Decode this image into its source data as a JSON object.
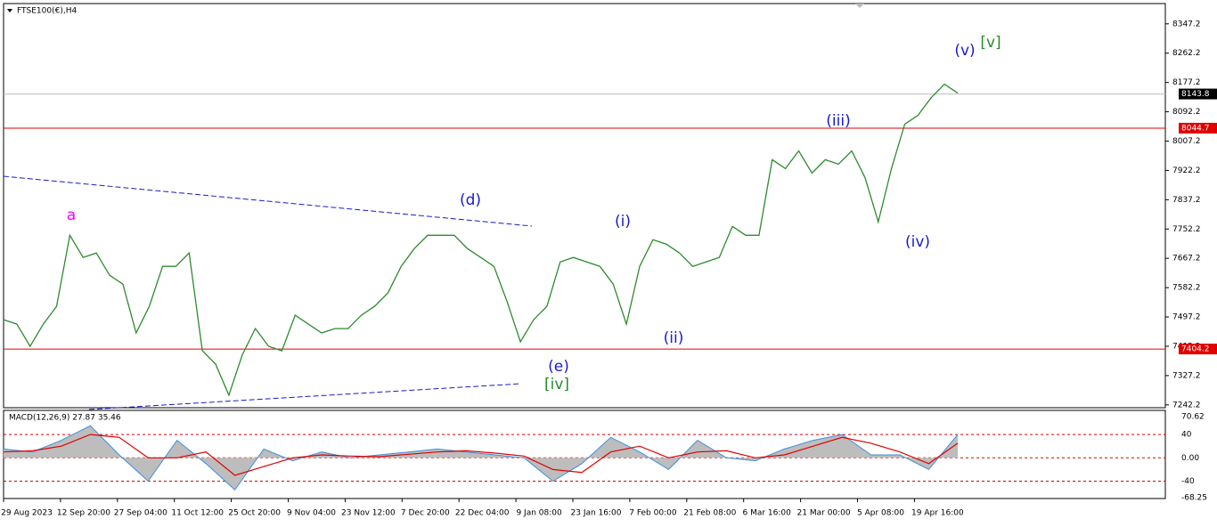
{
  "chart_data": [
    {
      "type": "line",
      "title": "FTSE100(€),H4",
      "color": "#2e8b2e",
      "values": [
        7489.4,
        7476.5,
        7412.1,
        7476.5,
        7528.0,
        7734.1,
        7669.7,
        7682.6,
        7618.2,
        7592.4,
        7450.8,
        7528.0,
        7644.0,
        7644.0,
        7682.6,
        7399.2,
        7360.6,
        7270.4,
        7386.4,
        7463.6,
        7412.1,
        7399.2,
        7502.3,
        7476.5,
        7450.8,
        7463.6,
        7463.6,
        7502.3,
        7528.0,
        7566.7,
        7644.0,
        7695.5,
        7734.1,
        7734.1,
        7734.1,
        7695.5,
        7669.7,
        7644.0,
        7540.9,
        7425.0,
        7489.4,
        7528.0,
        7656.8,
        7669.7,
        7656.8,
        7644.0,
        7592.4,
        7476.5,
        7644.0,
        7721.2,
        7708.4,
        7682.6,
        7644.0,
        7656.8,
        7669.7,
        7759.9,
        7734.1,
        7734.1,
        7953.1,
        7927.3,
        7978.8,
        7914.4,
        7953.1,
        7940.2,
        7978.8,
        7901.6,
        7772.8,
        7927.3,
        8056.1,
        8081.9,
        8133.4,
        8172.0,
        8146.3
      ],
      "ylim": [
        7234,
        8406
      ],
      "yticks": [
        8347.2,
        8262.2,
        8177.2,
        8092.2,
        8007.2,
        7922.2,
        7837.2,
        7752.2,
        7667.2,
        7582.2,
        7497.2,
        7412.2,
        7327.2,
        7242.2
      ],
      "hlines": [
        {
          "value": 8044.7,
          "color": "#e00000"
        },
        {
          "value": 7404.2,
          "color": "#e00000"
        }
      ],
      "last_price": 8143.8,
      "annotations": [
        {
          "text": "a",
          "color": "#ff00ff"
        },
        {
          "text": "(d)",
          "color": "#1a1acc"
        },
        {
          "text": "(i)",
          "color": "#1a1acc"
        },
        {
          "text": "(ii)",
          "color": "#1a1acc"
        },
        {
          "text": "(iii)",
          "color": "#1a1acc"
        },
        {
          "text": "(iv)",
          "color": "#1a1acc"
        },
        {
          "text": "(v)",
          "color": "#1a1acc"
        },
        {
          "text": "[v]",
          "color": "#2a8a2a"
        },
        {
          "text": "(e)",
          "color": "#1a1acc"
        },
        {
          "text": "[iv]",
          "color": "#2a8a2a"
        }
      ],
      "x_labels": [
        "29 Aug 2023",
        "12 Sep 20:00",
        "27 Sep 04:00",
        "11 Oct 12:00",
        "25 Oct 20:00",
        "9 Nov 04:00",
        "23 Nov 12:00",
        "7 Dec 20:00",
        "22 Dec 04:00",
        "9 Jan 08:00",
        "23 Jan 16:00",
        "7 Feb 00:00",
        "21 Feb 08:00",
        "6 Mar 16:00",
        "21 Mar 00:00",
        "5 Apr 08:00",
        "19 Apr 16:00"
      ]
    },
    {
      "type": "macd",
      "title": "MACD(12,26,9) 27.87 35.46",
      "color": "#3c8fdf",
      "signal_color": "#e00000",
      "values": [
        15,
        10,
        30,
        55,
        5,
        -40,
        30,
        -10,
        -55,
        15,
        -5,
        10,
        0,
        5,
        10,
        15,
        10,
        5,
        0,
        -40,
        -10,
        35,
        10,
        -20,
        30,
        0,
        -5,
        15,
        30,
        40,
        5,
        5,
        -20,
        40
      ],
      "signal": [
        10,
        12,
        20,
        40,
        35,
        0,
        0,
        10,
        -30,
        -15,
        0,
        5,
        3,
        2,
        6,
        10,
        12,
        8,
        3,
        -20,
        -25,
        10,
        20,
        0,
        10,
        12,
        0,
        5,
        20,
        35,
        25,
        10,
        -10,
        25
      ],
      "ylim": [
        -68.25,
        70.62
      ],
      "yticks": [
        70.62,
        40,
        {
          "value": 0,
          "label": "0.00"
        },
        -40,
        -68.25
      ]
    }
  ]
}
